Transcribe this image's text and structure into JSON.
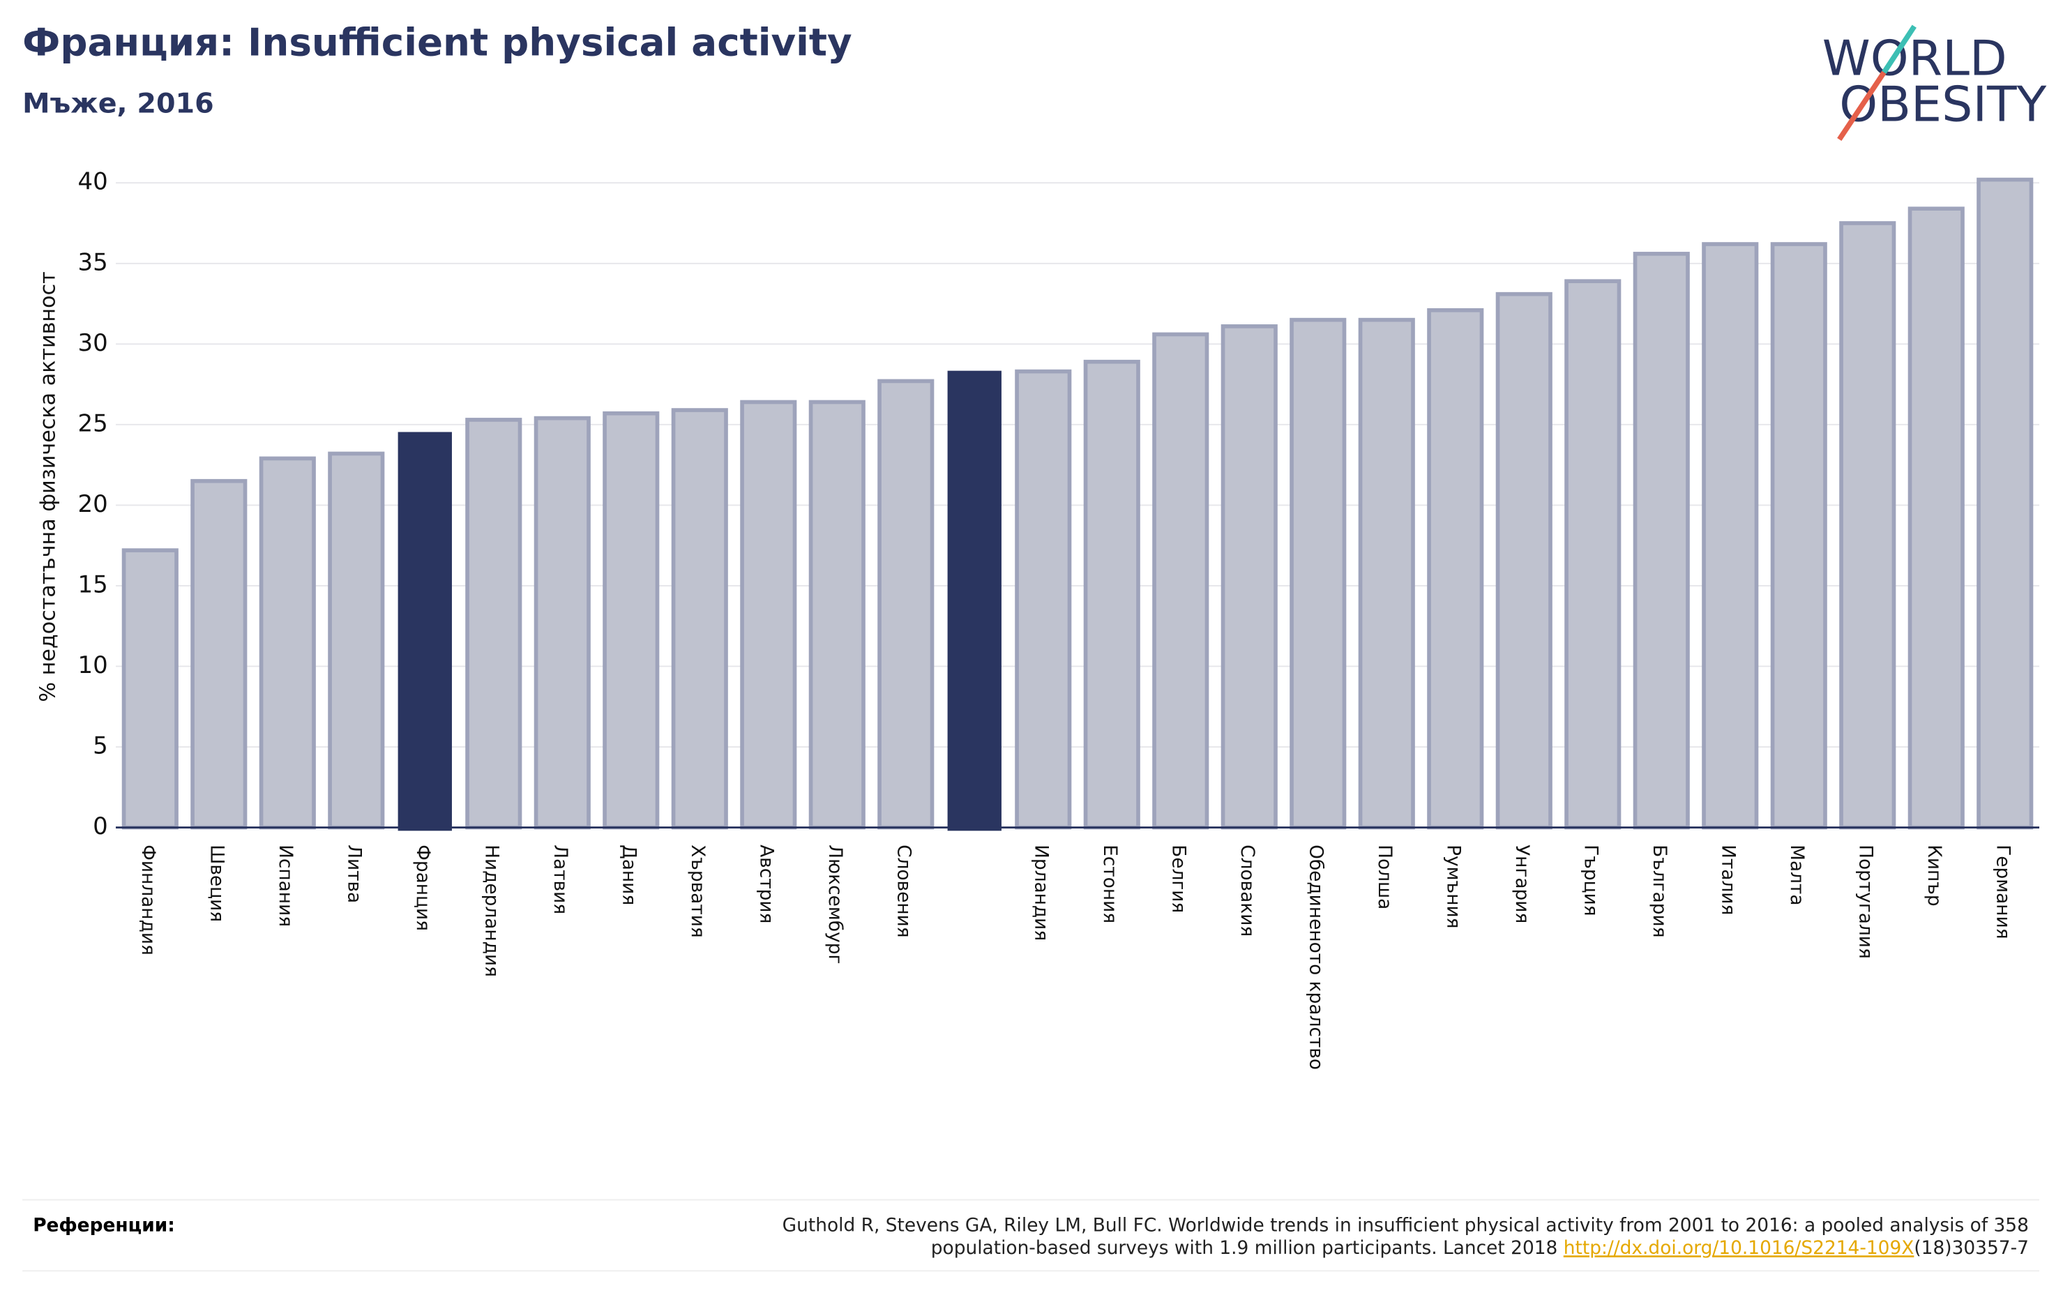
{
  "chart_data": {
    "type": "bar",
    "title": "Франция: Insufficient physical activity",
    "subtitle": "Мъже, 2016",
    "y_label": "% недостатъчна физическа активност",
    "categories": [
      "Финландия",
      "Швеция",
      "Испания",
      "Литва",
      "Франция",
      "Нидерландия",
      "Латвия",
      "Дания",
      "Хърватия",
      "Австрия",
      "Люксембург",
      "Словения",
      null,
      "Ирландия",
      "Естония",
      "Белгия",
      "Словакия",
      "Обединеното кралство",
      "Полша",
      "Румъния",
      "Унгария",
      "Гърция",
      "България",
      "Италия",
      "Малта",
      "Португалия",
      "Кипър",
      "Германия"
    ],
    "values": [
      17.2,
      21.5,
      22.9,
      23.2,
      24.5,
      25.3,
      25.4,
      25.7,
      25.9,
      26.4,
      26.4,
      27.7,
      28.3,
      28.3,
      28.9,
      30.6,
      31.1,
      31.5,
      31.5,
      32.1,
      33.1,
      33.9,
      35.6,
      36.2,
      36.2,
      37.5,
      38.4,
      40.2
    ],
    "colors": [
      "#bfc2cf",
      "#bfc2cf",
      "#bfc2cf",
      "#bfc2cf",
      "#2a3560",
      "#bfc2cf",
      "#bfc2cf",
      "#bfc2cf",
      "#bfc2cf",
      "#bfc2cf",
      "#bfc2cf",
      "#bfc2cf",
      "#2a3560",
      "#bfc2cf",
      "#bfc2cf",
      "#bfc2cf",
      "#bfc2cf",
      "#bfc2cf",
      "#bfc2cf",
      "#bfc2cf",
      "#bfc2cf",
      "#bfc2cf",
      "#bfc2cf",
      "#bfc2cf",
      "#bfc2cf",
      "#bfc2cf",
      "#bfc2cf",
      "#bfc2cf"
    ],
    "ylim": [
      0,
      40
    ],
    "yticks": [
      0,
      5,
      10,
      15,
      20,
      25,
      30,
      35,
      40
    ],
    "grid": true
  },
  "logo": {
    "line1": "WORLD",
    "line2": "OBESITY"
  },
  "footer": {
    "label": "Референции:",
    "text1": "Guthold R, Stevens GA, Riley LM, Bull FC. Worldwide trends in insufficient physical activity from 2001 to 2016: a pooled analysis of 358",
    "text2": "population-based surveys with 1.9 million participants. Lancet 2018 ",
    "link": "http://dx.doi.org/10.1016/S2214-109X",
    "text3": "(18)30357-7"
  }
}
